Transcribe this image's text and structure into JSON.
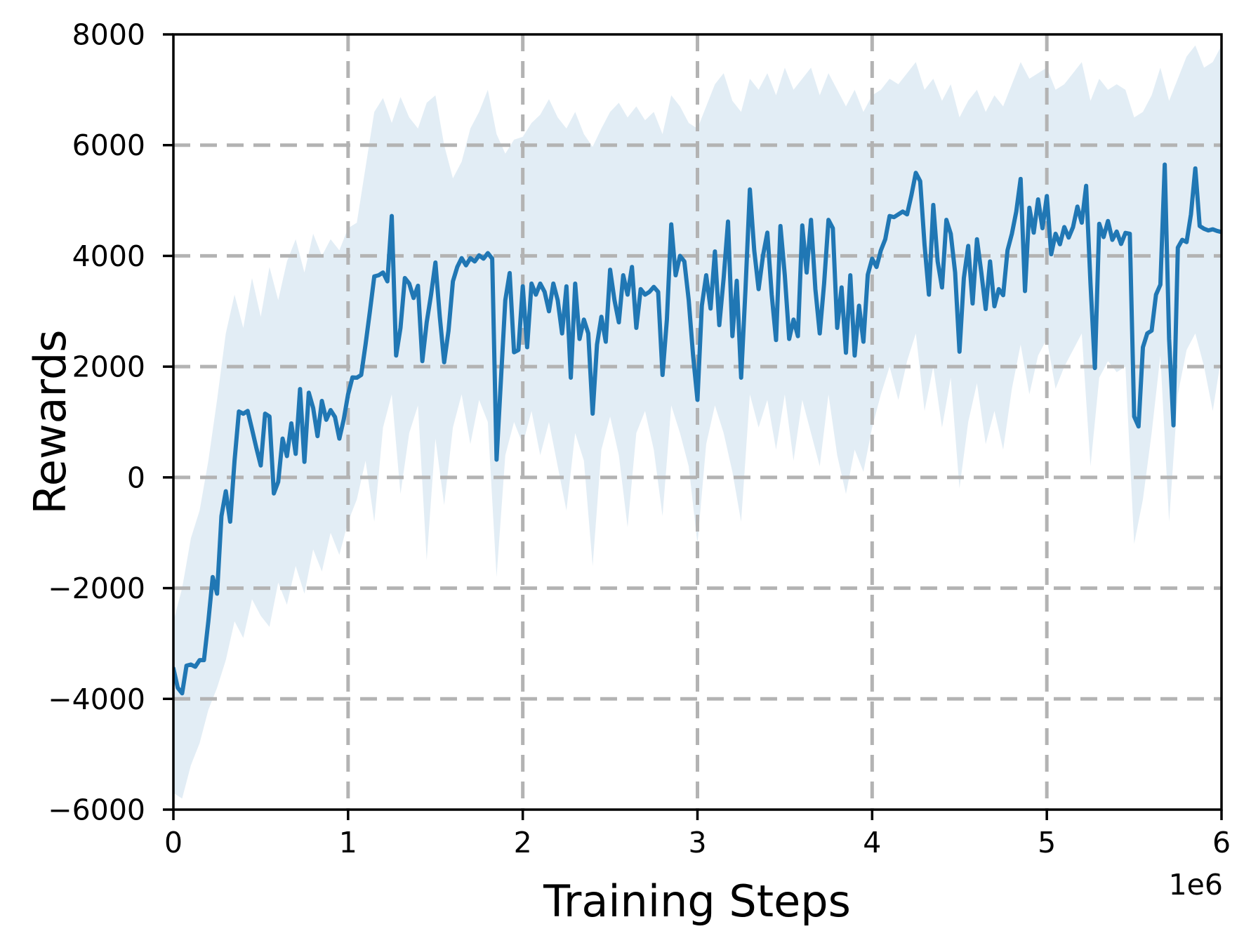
{
  "figure": {
    "background": "#ffffff",
    "offset_label": "1e6"
  },
  "chart_data": {
    "type": "line",
    "title": "",
    "xlabel": "Training Steps",
    "ylabel": "Rewards",
    "x_axis_multiplier_label": "1e6",
    "xlim": [
      0,
      6000000
    ],
    "ylim": [
      -6000,
      8000
    ],
    "x_ticks": [
      0,
      1,
      2,
      3,
      4,
      5,
      6
    ],
    "y_ticks": [
      8000,
      6000,
      4000,
      2000,
      0,
      -2000,
      -4000,
      -6000
    ],
    "grid": true,
    "grid_style": "dashed",
    "legend_position": "none",
    "colors": {
      "mean_line": "#2077b4",
      "band_fill": "#1f77b4",
      "band_opacity": 0.13,
      "grid": "#b3b3b3",
      "spine": "#000000",
      "text": "#000000"
    },
    "series": [
      {
        "name": "mean_reward",
        "role": "mean",
        "x_start": 0,
        "x_step": 25000,
        "values": [
          -3450,
          -3800,
          -3900,
          -3400,
          -3380,
          -3420,
          -3300,
          -3300,
          -2600,
          -1800,
          -2100,
          -700,
          -250,
          -800,
          300,
          1190,
          1150,
          1200,
          870,
          530,
          215,
          1150,
          1100,
          -290,
          -80,
          700,
          385,
          975,
          425,
          1595,
          280,
          1530,
          1255,
          745,
          1380,
          1040,
          1215,
          1090,
          700,
          1045,
          1500,
          1805,
          1800,
          1850,
          2400,
          3000,
          3630,
          3650,
          3700,
          3540,
          4720,
          2200,
          2700,
          3600,
          3500,
          3240,
          3460,
          2100,
          2800,
          3300,
          3880,
          2900,
          2080,
          2650,
          3540,
          3800,
          3960,
          3830,
          3960,
          3900,
          4010,
          3950,
          4050,
          3950,
          320,
          1760,
          3200,
          3690,
          2260,
          2300,
          3450,
          2350,
          3500,
          3300,
          3500,
          3350,
          3000,
          3500,
          3200,
          2600,
          3450,
          1800,
          3500,
          2500,
          2850,
          2600,
          1150,
          2400,
          2900,
          2450,
          3750,
          3200,
          2800,
          3650,
          3300,
          3800,
          2700,
          3400,
          3300,
          3350,
          3440,
          3350,
          1850,
          2850,
          4570,
          3650,
          4000,
          3900,
          3200,
          2200,
          1400,
          3100,
          3650,
          3050,
          4080,
          2750,
          3600,
          4620,
          2550,
          3550,
          1800,
          3400,
          5200,
          4100,
          3400,
          4000,
          4420,
          3300,
          2480,
          4540,
          3650,
          2500,
          2850,
          2550,
          4550,
          3700,
          4650,
          3400,
          2600,
          3500,
          4650,
          4500,
          2700,
          3430,
          2250,
          3650,
          2200,
          3100,
          2450,
          3660,
          3950,
          3800,
          4100,
          4300,
          4720,
          4700,
          4750,
          4800,
          4750,
          5100,
          5500,
          5350,
          4200,
          3300,
          4920,
          3900,
          3430,
          4650,
          4400,
          3700,
          2270,
          3600,
          4180,
          3140,
          4300,
          3700,
          3040,
          3900,
          3090,
          3400,
          3290,
          4100,
          4400,
          4800,
          5390,
          3365,
          4870,
          4420,
          5020,
          4500,
          5080,
          4030,
          4400,
          4210,
          4520,
          4330,
          4520,
          4890,
          4600,
          5265,
          3500,
          1975,
          4580,
          4340,
          4630,
          4290,
          4440,
          4215,
          4415,
          4400,
          1100,
          920,
          2350,
          2600,
          2650,
          3300,
          3480,
          5650,
          2500,
          940,
          4150,
          4290,
          4250,
          4750,
          5580,
          4540,
          4490,
          4460,
          4480,
          4450,
          4430
        ]
      },
      {
        "name": "band_upper",
        "role": "confidence_upper",
        "x_start": 0,
        "x_step": 50000,
        "values": [
          -2600,
          -2000,
          -1100,
          -600,
          300,
          1400,
          2600,
          3300,
          2700,
          3600,
          2900,
          3800,
          3200,
          3900,
          4300,
          3700,
          4400,
          4000,
          4300,
          4100,
          4500,
          4600,
          5600,
          6600,
          6850,
          6400,
          6870,
          6500,
          6300,
          6765,
          6900,
          6000,
          5400,
          5700,
          6300,
          6600,
          7000,
          6200,
          5845,
          6100,
          6150,
          6400,
          6550,
          6830,
          6500,
          6300,
          6600,
          6200,
          5970,
          6300,
          6600,
          6765,
          6500,
          6700,
          6450,
          6600,
          6200,
          6900,
          6700,
          6400,
          6300,
          6700,
          7100,
          7300,
          6800,
          6600,
          7200,
          7000,
          7300,
          6900,
          7400,
          7000,
          7200,
          7400,
          6900,
          7300,
          7000,
          6700,
          7000,
          6600,
          6900,
          7000,
          7200,
          7100,
          7300,
          7500,
          7000,
          7200,
          6800,
          7100,
          6500,
          6800,
          7000,
          6600,
          6900,
          6700,
          7100,
          7500,
          7200,
          7300,
          7400,
          7000,
          7100,
          7300,
          7500,
          6800,
          7200,
          7000,
          7100,
          7000,
          6500,
          6600,
          6900,
          7400,
          6800,
          7200,
          7600,
          7800,
          7400,
          7500,
          7800
        ]
      },
      {
        "name": "band_lower",
        "role": "confidence_lower",
        "x_start": 0,
        "x_step": 50000,
        "values": [
          -5700,
          -5800,
          -5200,
          -4800,
          -4200,
          -3800,
          -3300,
          -2600,
          -2900,
          -2200,
          -2500,
          -2700,
          -1900,
          -2300,
          -1600,
          -2100,
          -1300,
          -1700,
          -1000,
          -1400,
          -800,
          -400,
          300,
          -800,
          900,
          1500,
          -300,
          800,
          1300,
          -1500,
          700,
          -500,
          900,
          1500,
          600,
          1400,
          1000,
          -1800,
          400,
          1000,
          600,
          1200,
          400,
          1000,
          200,
          -600,
          800,
          300,
          -1600,
          500,
          1100,
          400,
          -900,
          800,
          1200,
          500,
          -700,
          1300,
          800,
          200,
          -1200,
          600,
          1300,
          800,
          100,
          -800,
          1500,
          900,
          1400,
          500,
          1500,
          300,
          1400,
          800,
          200,
          1500,
          400,
          -300,
          500,
          100,
          900,
          1500,
          2000,
          1400,
          2100,
          2600,
          1200,
          2000,
          900,
          1800,
          -200,
          1000,
          1700,
          600,
          1200,
          500,
          1600,
          2400,
          1500,
          2200,
          2500,
          1600,
          2000,
          2300,
          2600,
          200,
          1800,
          2100,
          1900,
          2000,
          -1200,
          -400,
          800,
          2200,
          -800,
          1500,
          2300,
          2600,
          2000,
          1200,
          2200
        ]
      }
    ]
  }
}
